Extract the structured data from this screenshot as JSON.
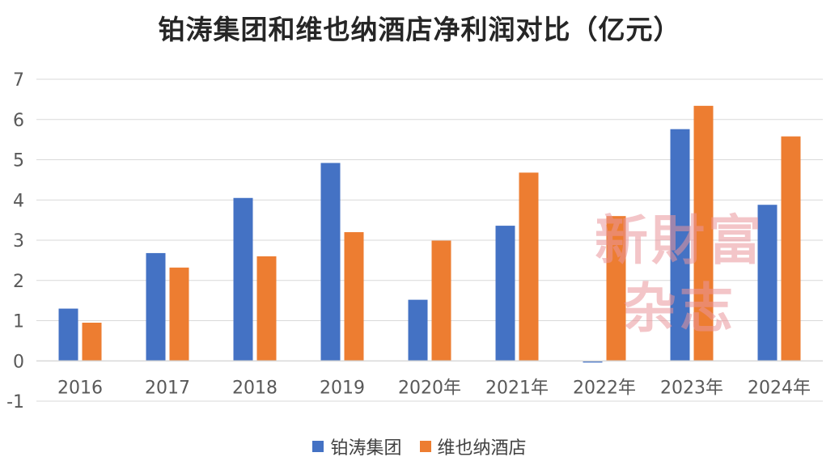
{
  "chart_data": {
    "type": "bar",
    "title": "铂涛集团和维也纳酒店净利润对比（亿元）",
    "categories": [
      "2016",
      "2017",
      "2018",
      "2019",
      "2020年",
      "2021年",
      "2022年",
      "2023年",
      "2024年"
    ],
    "series": [
      {
        "name": "铂涛集团",
        "color": "#4472C4",
        "values": [
          1.3,
          2.68,
          4.05,
          4.92,
          1.52,
          3.36,
          -0.04,
          5.76,
          3.88
        ]
      },
      {
        "name": "维也纳酒店",
        "color": "#ED7D31",
        "values": [
          0.95,
          2.32,
          2.6,
          3.2,
          2.99,
          4.68,
          3.6,
          6.34,
          5.58
        ]
      }
    ],
    "ylim": [
      -1,
      7
    ],
    "yticks": [
      -1,
      0,
      1,
      2,
      3,
      4,
      5,
      6,
      7
    ],
    "xlabel": "",
    "ylabel": "",
    "grid": true,
    "legend_position": "bottom"
  },
  "watermark": {
    "line1": "新財富",
    "line2": "杂志"
  }
}
